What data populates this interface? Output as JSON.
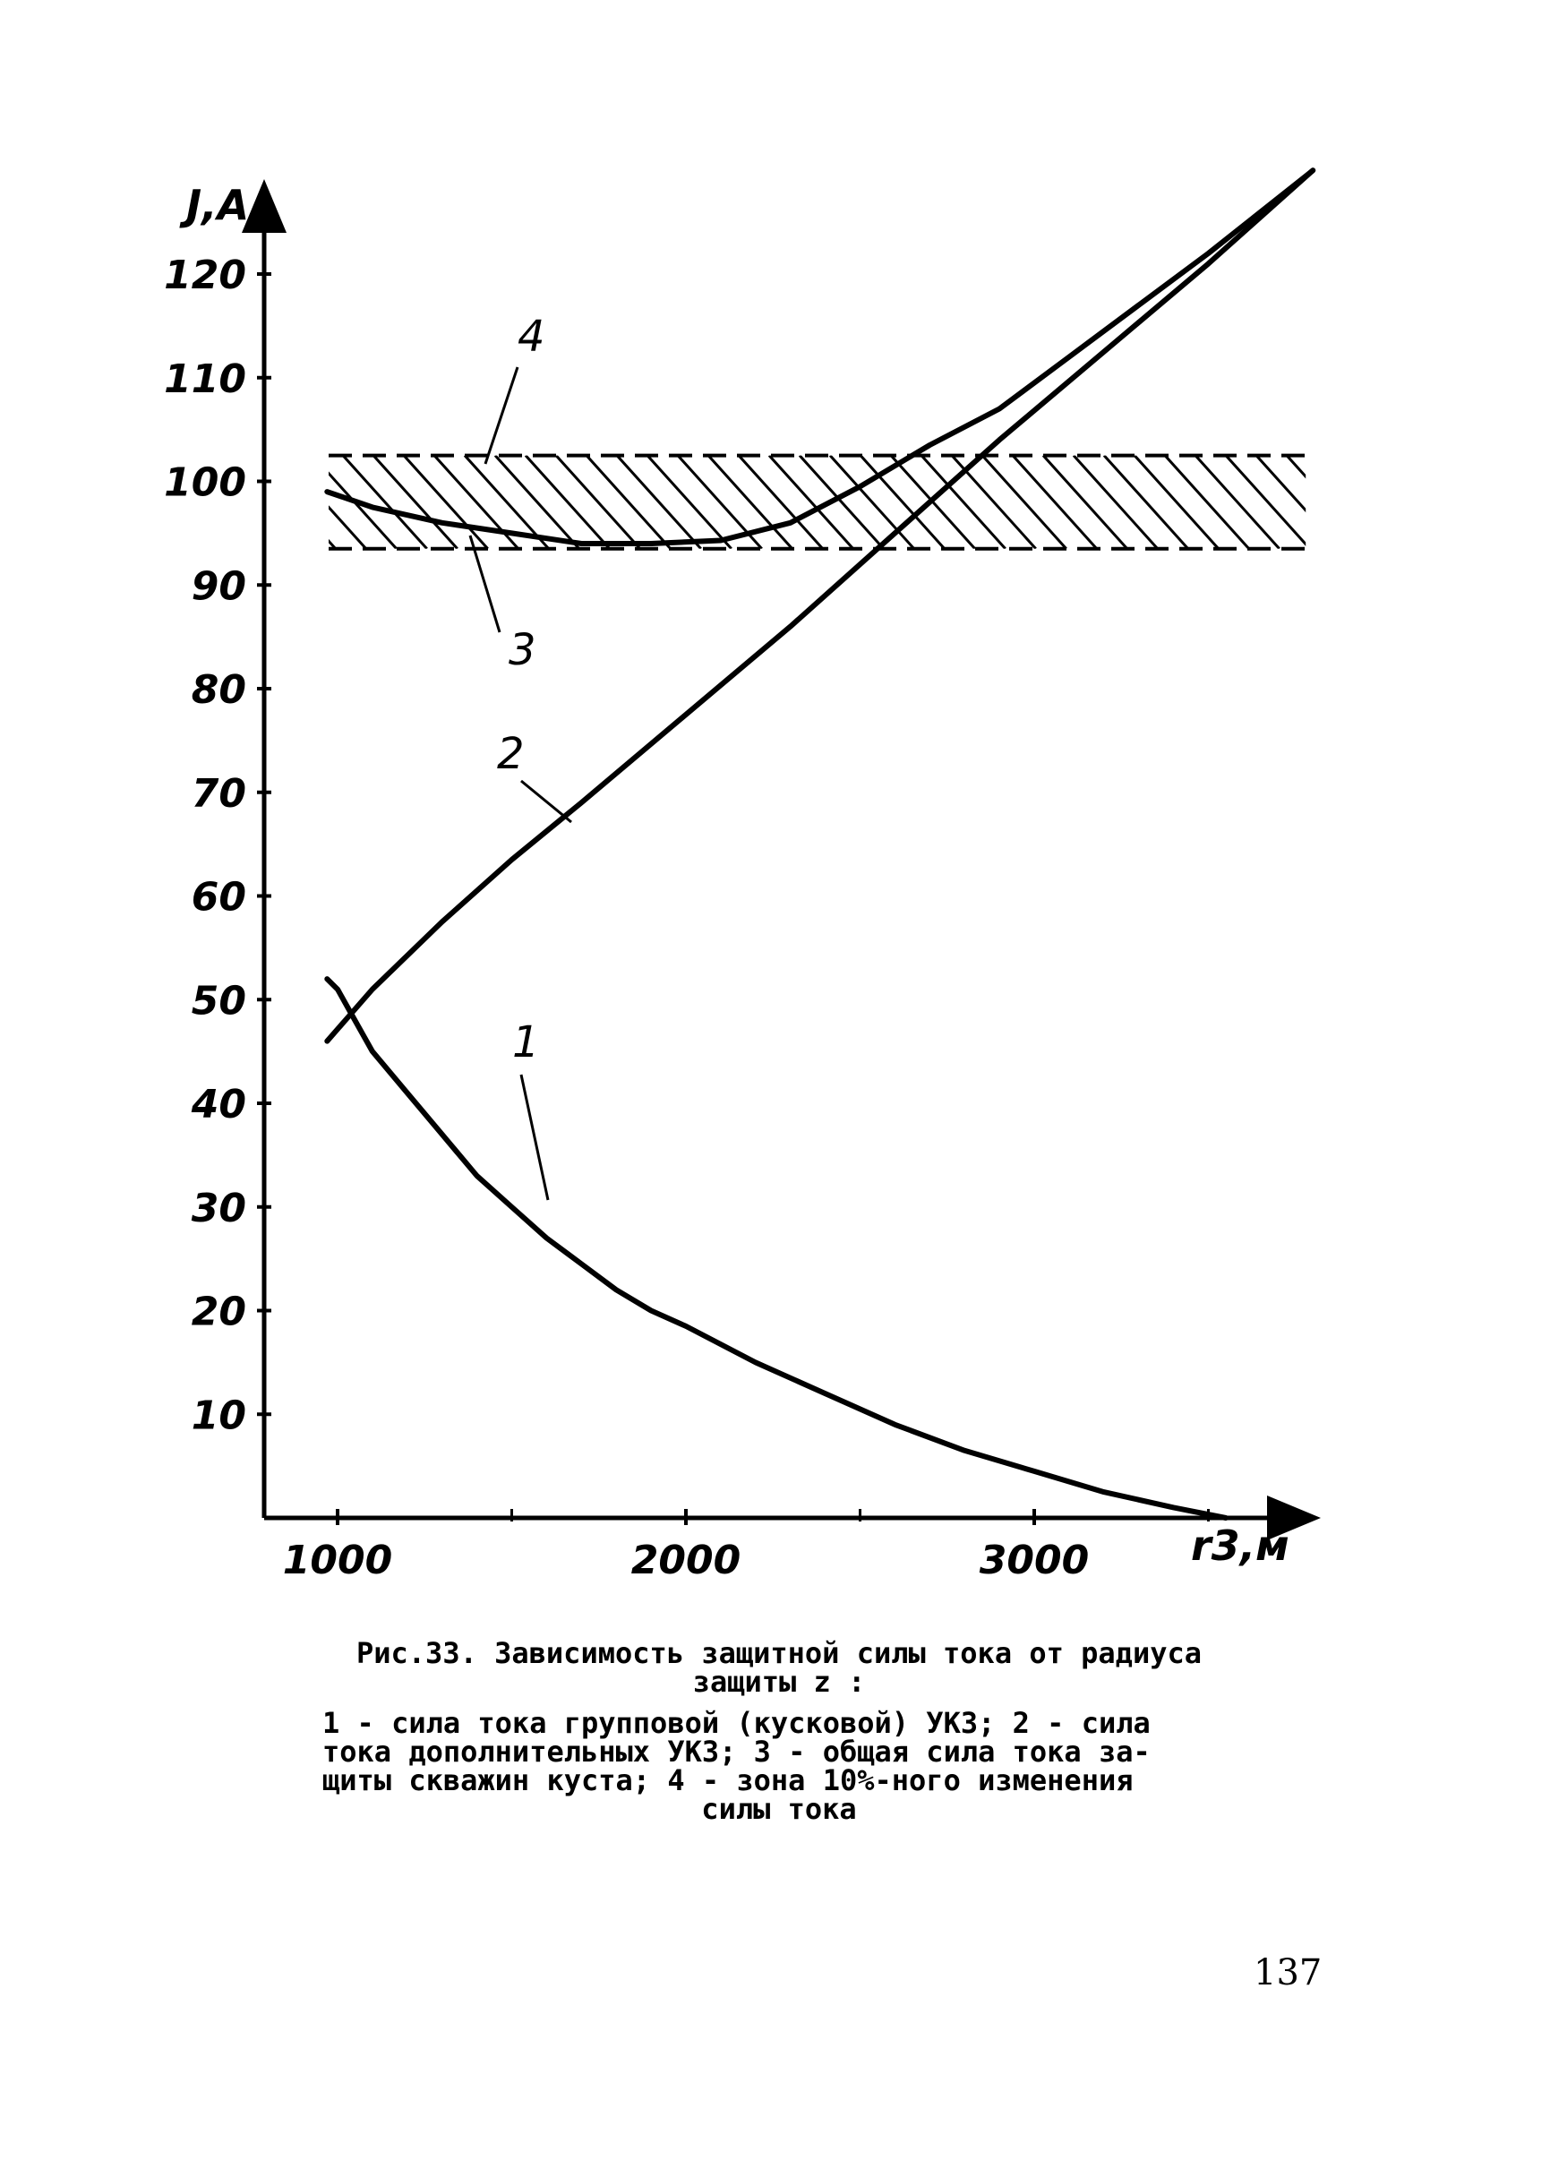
{
  "chart_data": {
    "type": "line",
    "ylabel": "J,A",
    "xlabel": "r3,м",
    "xlim": [
      800,
      3800
    ],
    "ylim": [
      0,
      130
    ],
    "x_ticks": [
      1000,
      2000,
      3000
    ],
    "x_tick_labels": [
      "1000",
      "2000",
      "3000"
    ],
    "x_minor_ticks": [
      1500,
      2500,
      3500
    ],
    "y_ticks": [
      10,
      20,
      30,
      40,
      50,
      60,
      70,
      80,
      90,
      100,
      110,
      120
    ],
    "y_tick_labels": [
      "10",
      "20",
      "30",
      "40",
      "50",
      "60",
      "70",
      "80",
      "90",
      "100",
      "110",
      "120"
    ],
    "grid": false,
    "series": [
      {
        "name": "1",
        "x": [
          970,
          1000,
          1050,
          1100,
          1200,
          1300,
          1400,
          1500,
          1600,
          1700,
          1800,
          1900,
          2000,
          2200,
          2400,
          2600,
          2800,
          3000,
          3200,
          3400,
          3550
        ],
        "y": [
          52,
          51,
          48,
          45,
          41,
          37,
          33,
          30,
          27,
          24.5,
          22,
          20,
          18.5,
          15,
          12,
          9,
          6.5,
          4.5,
          2.5,
          1,
          0
        ]
      },
      {
        "name": "2",
        "x": [
          970,
          1100,
          1300,
          1500,
          1700,
          2000,
          2300,
          2600,
          2900,
          3200,
          3500,
          3800
        ],
        "y": [
          46,
          51,
          57.5,
          63.5,
          69,
          77.5,
          86,
          95,
          104,
          112.5,
          121,
          130
        ]
      },
      {
        "name": "3",
        "x": [
          970,
          1100,
          1300,
          1500,
          1700,
          1900,
          2100,
          2300,
          2500,
          2700,
          2900,
          3100,
          3300,
          3500,
          3800
        ],
        "y": [
          99,
          97.5,
          96,
          95,
          94,
          94,
          94.3,
          96,
          99.5,
          103.5,
          107,
          112,
          117,
          122,
          130
        ]
      }
    ],
    "band": {
      "name": "4",
      "y_low": 93.5,
      "y_high": 102.5,
      "x_start": 1000,
      "x_end": 3800
    },
    "curve_labels": [
      "1",
      "2",
      "3",
      "4"
    ]
  },
  "caption": {
    "title": "Рис.33. Зависимость защитной силы тока от радиуса",
    "title_cont": "защиты  z  :",
    "legend_lines": [
      "1 - сила тока групповой (кусковой) УКЗ; 2 - сила",
      "тока дополнительных УКЗ; 3 - общая сила тока за-",
      "щиты скважин куста; 4 - зона 10%-ного изменения"
    ],
    "last_line": "силы тока"
  },
  "page_number": "137"
}
